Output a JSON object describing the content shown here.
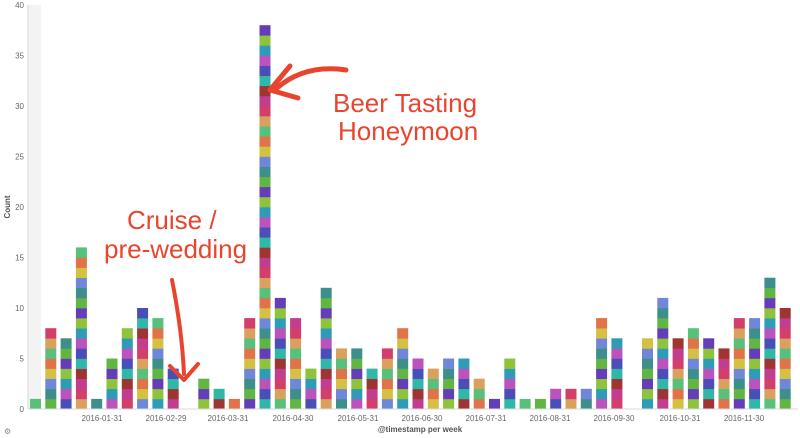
{
  "chart_data": {
    "type": "bar",
    "stacked": true,
    "xlabel": "@timestamp per week",
    "ylabel": "Count",
    "ylim": [
      0,
      40
    ],
    "y_ticks": [
      0,
      5,
      10,
      15,
      20,
      25,
      30,
      35,
      40
    ],
    "x_tick_labels": [
      "2016-01-31",
      "2016-02-29",
      "2016-03-31",
      "2016-04-30",
      "2016-05-31",
      "2016-06-30",
      "2016-07-31",
      "2016-08-31",
      "2016-09-30",
      "2016-10-31",
      "2016-11-30"
    ],
    "values": [
      1,
      8,
      7,
      16,
      1,
      5,
      8,
      10,
      9,
      4,
      0,
      3,
      2,
      1,
      9,
      38,
      11,
      9,
      4,
      12,
      6,
      6,
      4,
      6,
      8,
      5,
      4,
      5,
      5,
      3,
      1,
      5,
      1,
      1,
      2,
      2,
      2,
      9,
      7,
      0,
      7,
      11,
      7,
      8,
      7,
      6,
      9,
      9,
      13,
      10
    ],
    "grid": false,
    "legend": "none",
    "annotations": [
      {
        "text_lines": [
          "Beer Tasting",
          "Honeymoon"
        ],
        "points_to": "2016-04 peak"
      },
      {
        "text_lines": [
          "Cruise /",
          "pre-wedding"
        ],
        "points_to": "2016-03 dip"
      }
    ]
  },
  "colors": {
    "annotation": "#e9452e",
    "palette": [
      "#57c17b",
      "#6f87d8",
      "#663db8",
      "#bc52bc",
      "#9e3533",
      "#daa05d",
      "#d4c144",
      "#61b543",
      "#2f9cb7",
      "#31b7a8",
      "#d23f6b",
      "#e0734a",
      "#3e8f8c",
      "#8fc33b",
      "#4a4fb8",
      "#c23d8e"
    ]
  },
  "footer": {
    "icon": "gear-icon",
    "glyph": "⚙"
  }
}
